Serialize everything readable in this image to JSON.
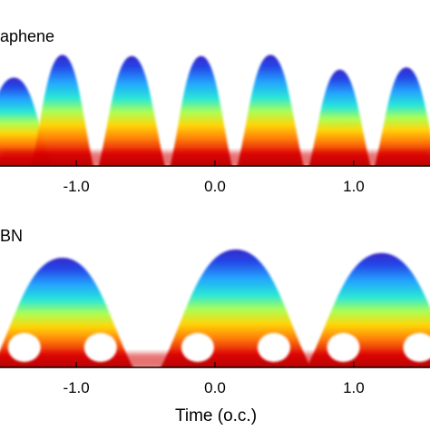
{
  "chart_data": [
    {
      "type": "heatmap",
      "panel_label": "aphene",
      "x_ticks": [
        -1.0,
        0.0,
        1.0
      ],
      "x_tick_labels": [
        "-1.0",
        "0.0",
        "1.0"
      ],
      "xlabel": "",
      "xlim": [
        -1.55,
        1.55
      ],
      "colormap": "jet",
      "grid": false,
      "harmonic_peaks": [
        {
          "x": -1.45,
          "height": 0.78,
          "core": 0.85
        },
        {
          "x": -1.1,
          "height": 0.98,
          "core": 0.7
        },
        {
          "x": -0.6,
          "height": 0.97,
          "core": 0.75
        },
        {
          "x": -0.1,
          "height": 0.97,
          "core": 0.7
        },
        {
          "x": 0.4,
          "height": 0.98,
          "core": 0.75
        },
        {
          "x": 0.9,
          "height": 0.85,
          "core": 0.7
        },
        {
          "x": 1.38,
          "height": 0.87,
          "core": 0.72
        }
      ]
    },
    {
      "type": "heatmap",
      "panel_label": "BN",
      "x_ticks": [
        -1.0,
        0.0,
        1.0
      ],
      "x_tick_labels": [
        "-1.0",
        "0.0",
        "1.0"
      ],
      "xlabel": "Time (o.c.)",
      "xlim": [
        -1.55,
        1.55
      ],
      "colormap": "jet",
      "grid": false,
      "harmonic_peaks": [
        {
          "x": -1.1,
          "height": 0.93,
          "core": 0.8
        },
        {
          "x": 0.15,
          "height": 1.0,
          "core": 0.85
        },
        {
          "x": 1.2,
          "height": 0.97,
          "core": 0.85
        }
      ]
    }
  ]
}
